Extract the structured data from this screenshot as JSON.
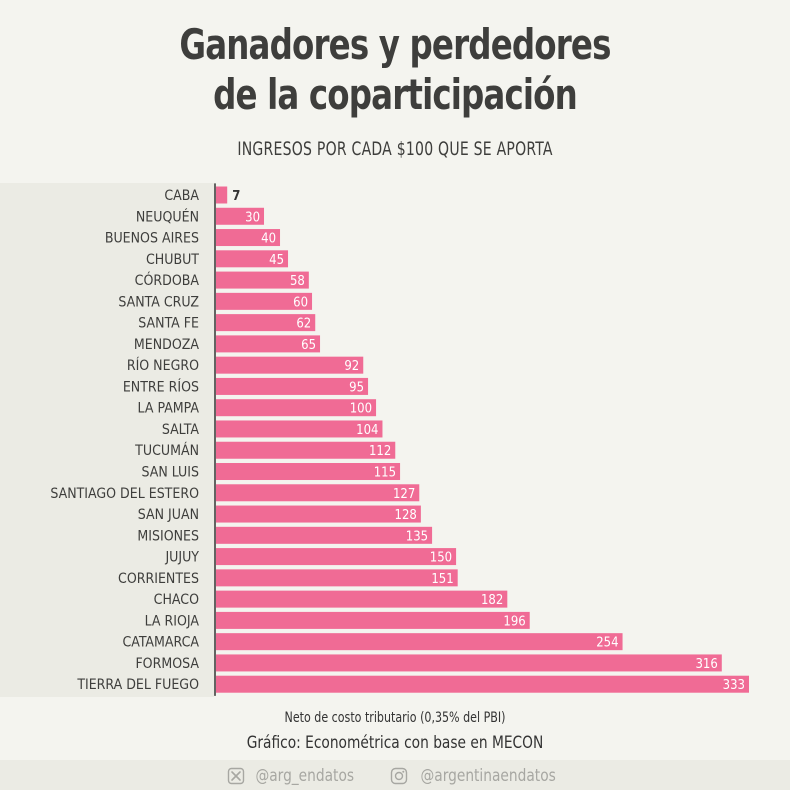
{
  "header": {
    "title_line1": "Ganadores y perdedores",
    "title_line2": "de la coparticipación",
    "subtitle": "INGRESOS POR CADA $100 QUE SE APORTA"
  },
  "notes": {
    "note": "Neto de costo tributario (0,35% del PBI)",
    "source": "Gráfico: Econométrica con base en MECON"
  },
  "footer": {
    "twitter_handle": "@arg_endatos",
    "instagram_handle": "@argentinaendatos"
  },
  "colors": {
    "bar": "#f06b95",
    "bar_label": "#ffffff",
    "outside_label": "#333333",
    "axis": "#333333",
    "category_label": "#3e3e3c"
  },
  "chart_data": {
    "type": "bar",
    "orientation": "horizontal",
    "title": "Ganadores y perdedores de la coparticipación",
    "subtitle": "INGRESOS POR CADA $100 QUE SE APORTA",
    "xlabel": "",
    "ylabel": "",
    "xlim": [
      0,
      333
    ],
    "grid": false,
    "legend": "none",
    "categories": [
      "CABA",
      "NEUQUÉN",
      "BUENOS AIRES",
      "CHUBUT",
      "CÓRDOBA",
      "SANTA CRUZ",
      "SANTA FE",
      "MENDOZA",
      "RÍO NEGRO",
      "ENTRE RÍOS",
      "LA PAMPA",
      "SALTA",
      "TUCUMÁN",
      "SAN LUIS",
      "SANTIAGO DEL ESTERO",
      "SAN JUAN",
      "MISIONES",
      "JUJUY",
      "CORRIENTES",
      "CHACO",
      "LA RIOJA",
      "CATAMARCA",
      "FORMOSA",
      "TIERRA DEL FUEGO"
    ],
    "values": [
      7,
      30,
      40,
      45,
      58,
      60,
      62,
      65,
      92,
      95,
      100,
      104,
      112,
      115,
      127,
      128,
      135,
      150,
      151,
      182,
      196,
      254,
      316,
      333
    ]
  }
}
